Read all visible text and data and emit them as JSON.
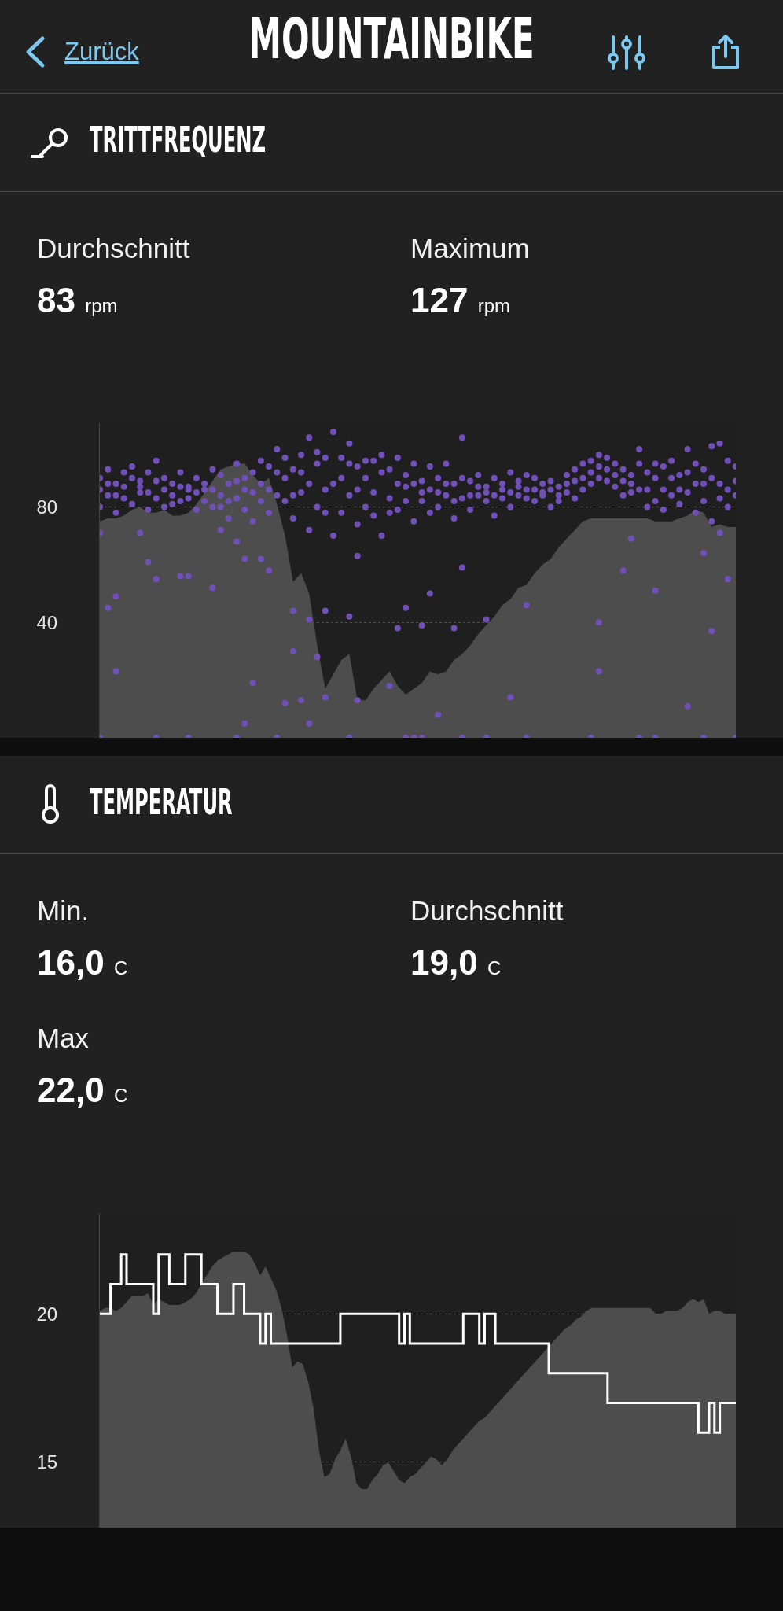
{
  "chart_data": [
    {
      "type": "other",
      "title": "MOUNTAINBIKE",
      "annotations": [
        "Zurück"
      ]
    },
    {
      "type": "scatter",
      "title": "TRITTFREQUENZ",
      "annotations": [
        "Durchschnitt",
        "83 rpm",
        "Maximum",
        "127 rpm"
      ],
      "categories": [
        null,
        null,
        null,
        null,
        null,
        null,
        null,
        null,
        null,
        null,
        null,
        null,
        null,
        null,
        null,
        null,
        null,
        null,
        null,
        null,
        null,
        null,
        null,
        null,
        null,
        null,
        null,
        null,
        null,
        null,
        null,
        null,
        null,
        null,
        null,
        null,
        null,
        null,
        null,
        null,
        null,
        null,
        null,
        null,
        null,
        null,
        null,
        null,
        null,
        null,
        null,
        null,
        null,
        null,
        null,
        null,
        null,
        null,
        null,
        null,
        null,
        null,
        null,
        null,
        null,
        null,
        null,
        null,
        null,
        null,
        null,
        null,
        null,
        null,
        null,
        null,
        null,
        null,
        null,
        null
      ],
      "ylim": [
        0,
        109
      ],
      "yticks": [
        40,
        80
      ],
      "grid": "y",
      "tick_labels": "y",
      "marker": "circle",
      "series": [
        {
          "type": "area",
          "marker": "none",
          "color": "#4d4d4d",
          "values": [
            75,
            76,
            76,
            77,
            79,
            80,
            78,
            78,
            79,
            77,
            77,
            78,
            81,
            85,
            89,
            93,
            94,
            95,
            95,
            91,
            88,
            90,
            81,
            70,
            54,
            57,
            50,
            32,
            17,
            22,
            27,
            29,
            13,
            13,
            17,
            20,
            23,
            18,
            15,
            17,
            19,
            23,
            22,
            23,
            27,
            29,
            32,
            36,
            39,
            42,
            46,
            48,
            52,
            53,
            57,
            60,
            62,
            66,
            69,
            72,
            75,
            76,
            76,
            76,
            76,
            76,
            76,
            76,
            76,
            75,
            75,
            75,
            76,
            77,
            79,
            78,
            73,
            74,
            73,
            73
          ]
        },
        {
          "color": "#7050b8",
          "values": [
            90,
            93,
            88,
            92,
            94,
            89,
            92,
            96,
            90,
            88,
            92,
            87,
            90,
            86,
            93,
            91,
            88,
            95,
            86,
            92,
            96,
            94,
            100,
            97,
            93,
            98,
            104,
            95,
            97,
            106,
            97,
            102,
            94,
            90,
            96,
            98,
            93,
            97,
            91,
            95,
            89,
            94,
            90,
            95,
            88,
            104,
            89,
            91,
            87,
            90,
            88,
            92,
            89,
            91,
            90,
            88,
            89,
            87,
            91,
            93,
            95,
            96,
            98,
            97,
            95,
            93,
            91,
            100,
            92,
            90,
            94,
            96,
            91,
            100,
            95,
            93,
            101,
            102,
            96,
            94
          ]
        },
        {
          "color": "#7050b8",
          "values": [
            80,
            84,
            78,
            83,
            81,
            85,
            79,
            83,
            80,
            84,
            82,
            86,
            79,
            82,
            80,
            84,
            76,
            83,
            79,
            75,
            82,
            78,
            84,
            82,
            76,
            85,
            72,
            80,
            86,
            70,
            78,
            84,
            74,
            80,
            77,
            70,
            83,
            79,
            87,
            75,
            82,
            78,
            80,
            84,
            76,
            83,
            79,
            84,
            82,
            77,
            83,
            85,
            84,
            83,
            82,
            84,
            80,
            82,
            85,
            83,
            86,
            88,
            90,
            89,
            87,
            84,
            85,
            86,
            80,
            82,
            79,
            84,
            81,
            85,
            78,
            82,
            75,
            83,
            80,
            84
          ]
        },
        {
          "color": "#7050b8",
          "values": [
            86,
            88,
            84,
            87,
            90,
            87,
            85,
            89,
            86,
            81,
            87,
            83,
            85,
            88,
            86,
            80,
            82,
            89,
            90,
            85,
            88,
            86,
            92,
            90,
            84,
            92,
            88,
            99,
            78,
            88,
            90,
            95,
            86,
            96,
            85,
            92,
            78,
            88,
            82,
            88,
            85,
            86,
            85,
            88,
            82,
            90,
            84,
            87,
            85,
            84,
            86,
            80,
            87,
            86,
            86,
            85,
            86,
            84,
            88,
            89,
            90,
            92,
            94,
            93,
            91,
            89,
            88,
            95,
            86,
            95,
            86,
            90,
            86,
            92,
            88,
            88,
            90,
            88,
            86,
            89
          ]
        },
        {
          "color": "#7050b8",
          "values": [
            71,
            45,
            49,
            null,
            null,
            71,
            61,
            55,
            null,
            null,
            56,
            56,
            null,
            null,
            52,
            72,
            null,
            68,
            62,
            null,
            62,
            58,
            null,
            null,
            44,
            null,
            41,
            null,
            44,
            null,
            null,
            42,
            63,
            null,
            null,
            null,
            null,
            38,
            45,
            null,
            39,
            50,
            null,
            null,
            38,
            59,
            null,
            null,
            41,
            null,
            null,
            null,
            null,
            46,
            null,
            null,
            null,
            null,
            null,
            null,
            null,
            null,
            40,
            null,
            null,
            58,
            69,
            null,
            null,
            51,
            null,
            null,
            null,
            null,
            null,
            64,
            37,
            71,
            55,
            null
          ]
        },
        {
          "color": "#7050b8",
          "values": [
            0,
            null,
            23,
            null,
            null,
            null,
            null,
            0,
            null,
            null,
            null,
            0,
            null,
            null,
            null,
            null,
            null,
            0,
            5,
            19,
            null,
            null,
            0,
            12,
            30,
            13,
            5,
            28,
            14,
            null,
            null,
            0,
            13,
            null,
            null,
            null,
            18,
            null,
            0,
            0,
            0,
            null,
            8,
            null,
            null,
            0,
            null,
            null,
            0,
            null,
            null,
            14,
            null,
            0,
            null,
            null,
            null,
            null,
            null,
            null,
            null,
            0,
            23,
            null,
            null,
            null,
            null,
            0,
            null,
            0,
            null,
            null,
            null,
            11,
            null,
            0,
            null,
            null,
            null,
            0
          ]
        }
      ]
    },
    {
      "type": "step",
      "title": "TEMPERATUR",
      "annotations": [
        "Min.",
        "16,0 C",
        "Durchschnitt",
        "19,0 C",
        "Max",
        "22,0 C"
      ],
      "categories": [
        null,
        null,
        null,
        null,
        null,
        null,
        null,
        null,
        null,
        null,
        null,
        null,
        null,
        null,
        null,
        null,
        null,
        null,
        null,
        null,
        null,
        null,
        null,
        null,
        null,
        null,
        null,
        null,
        null,
        null,
        null,
        null,
        null,
        null,
        null,
        null,
        null,
        null,
        null,
        null,
        null,
        null,
        null,
        null,
        null,
        null,
        null,
        null,
        null,
        null,
        null,
        null,
        null,
        null,
        null,
        null,
        null,
        null,
        null,
        null,
        null,
        null,
        null,
        null,
        null,
        null,
        null,
        null,
        null,
        null,
        null,
        null,
        null,
        null,
        null,
        null,
        null,
        null,
        null,
        null,
        null,
        null,
        null,
        null,
        null,
        null,
        null,
        null,
        null,
        null,
        null,
        null,
        null,
        null,
        null,
        null,
        null,
        null,
        null,
        null,
        null,
        null,
        null,
        null,
        null,
        null,
        null,
        null,
        null,
        null,
        null,
        null,
        null,
        null,
        null,
        null,
        null,
        null,
        null,
        null
      ],
      "ylim": [
        12.8,
        23.4
      ],
      "yticks": [
        15,
        20
      ],
      "grid": "y",
      "tick_labels": "y",
      "series": [
        {
          "type": "area",
          "color": "#4d4d4d",
          "values": [
            20.1,
            20.2,
            20.2,
            20.1,
            20.2,
            20.4,
            20.6,
            20.6,
            20.6,
            20.7,
            20.3,
            20.5,
            20.4,
            20.3,
            20.3,
            20.3,
            20.4,
            20.5,
            20.7,
            21.0,
            21.3,
            21.6,
            21.8,
            21.9,
            22.0,
            22.1,
            22.1,
            22.1,
            22.0,
            21.7,
            21.3,
            21.6,
            21.2,
            20.8,
            20.2,
            19.3,
            18.2,
            18.4,
            18.3,
            17.7,
            16.8,
            15.4,
            14.5,
            14.6,
            15.1,
            15.4,
            15.8,
            15.2,
            14.3,
            14.1,
            14.1,
            14.4,
            14.6,
            14.9,
            15.0,
            14.7,
            14.4,
            14.3,
            14.5,
            14.6,
            14.8,
            15.0,
            15.2,
            15.1,
            14.9,
            15.1,
            15.4,
            15.6,
            15.8,
            16.0,
            16.2,
            16.4,
            16.5,
            16.7,
            16.9,
            17.1,
            17.3,
            17.5,
            17.7,
            17.9,
            18.1,
            18.3,
            18.5,
            18.7,
            18.9,
            19.1,
            19.3,
            19.5,
            19.6,
            19.8,
            19.9,
            20.1,
            20.2,
            20.2,
            20.2,
            20.2,
            20.2,
            20.2,
            20.2,
            20.2,
            20.2,
            20.2,
            20.2,
            20.2,
            20.0,
            20.0,
            20.1,
            20.1,
            20.1,
            20.2,
            20.4,
            20.5,
            20.4,
            20.5,
            20.0,
            20.1,
            20.1,
            20.0,
            20.0,
            20.0
          ]
        },
        {
          "color": "#ffffff",
          "values": [
            20,
            20,
            21,
            21,
            22,
            21,
            21,
            21,
            21,
            21,
            20,
            22,
            22,
            21,
            21,
            21,
            22,
            22,
            22,
            21,
            21,
            21,
            20,
            20,
            20,
            21,
            21,
            20,
            20,
            20,
            19,
            20,
            19,
            19,
            19,
            19,
            19,
            19,
            19,
            19,
            19,
            19,
            19,
            19,
            19,
            20,
            20,
            20,
            20,
            20,
            20,
            20,
            20,
            20,
            20,
            20,
            19,
            20,
            19,
            19,
            19,
            19,
            19,
            19,
            19,
            19,
            19,
            19,
            20,
            20,
            20,
            19,
            20,
            20,
            19,
            19,
            19,
            19,
            19,
            19,
            19,
            19,
            19,
            19,
            18,
            18,
            18,
            18,
            18,
            18,
            18,
            18,
            18,
            18,
            18,
            17,
            17,
            17,
            17,
            17,
            17,
            17,
            17,
            17,
            17,
            17,
            17,
            17,
            17,
            17,
            17,
            17,
            16,
            16,
            17,
            16,
            17,
            17,
            17,
            17
          ]
        }
      ]
    }
  ]
}
